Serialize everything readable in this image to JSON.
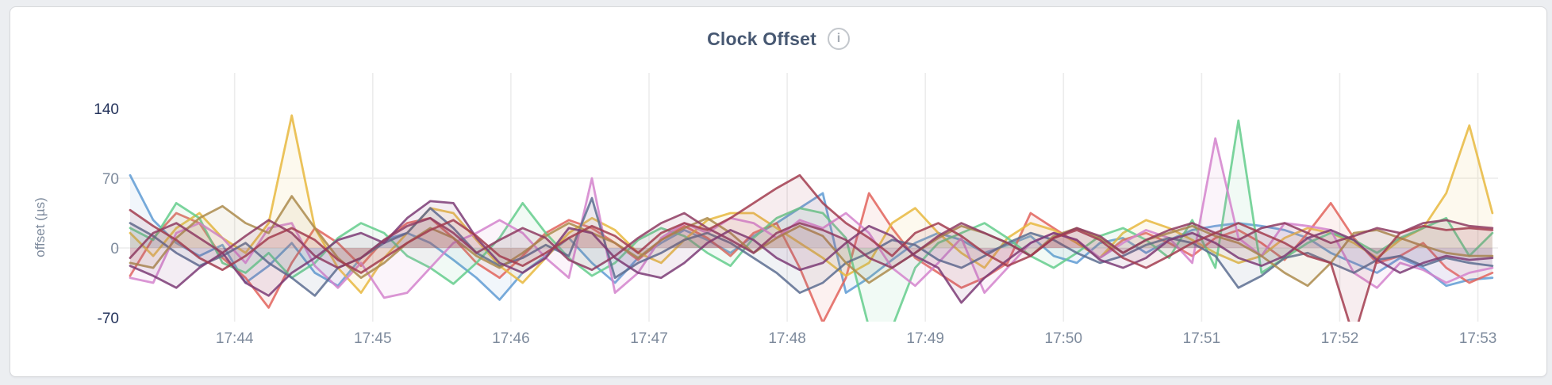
{
  "page": {
    "background": "#eceef1"
  },
  "card": {
    "background": "#ffffff",
    "border_color": "#d8d9dc"
  },
  "header": {
    "title": "Clock Offset",
    "info_icon_glyph": "i"
  },
  "styles": {
    "title_color": "#475872",
    "tick_color": "#7d8a9c",
    "tick_emphasis_color": "#24335b",
    "axis_title_color": "#7d8a9c",
    "grid_color": "#ececec",
    "info_icon_color": "#c3c7cc"
  },
  "chart_data": {
    "type": "line",
    "title": "Clock Offset",
    "xlabel": "",
    "ylabel": "offset (µs)",
    "x_ticks": [
      "17:44",
      "17:45",
      "17:46",
      "17:47",
      "17:48",
      "17:49",
      "17:50",
      "17:51",
      "17:52",
      "17:53"
    ],
    "y_ticks": [
      {
        "label": "140",
        "value": 140,
        "emphasis": true,
        "gridline": false
      },
      {
        "label": "70",
        "value": 70,
        "emphasis": false,
        "gridline": true
      },
      {
        "label": "0",
        "value": 0,
        "emphasis": false,
        "gridline": true
      },
      {
        "label": "-70",
        "value": -70,
        "emphasis": true,
        "gridline": false
      }
    ],
    "ylim": [
      -73,
      173
    ],
    "grid": true,
    "legend": "none",
    "points_interval_sec": 10,
    "series": [
      {
        "id": "series-1",
        "color": "#5f9bd3",
        "values": [
          73,
          28,
          5,
          -8,
          3,
          -35,
          -18,
          5,
          -25,
          -38,
          -10,
          8,
          15,
          5,
          -12,
          -30,
          -52,
          -25,
          -8,
          10,
          -15,
          -35,
          -10,
          5,
          18,
          8,
          -5,
          12,
          25,
          40,
          55,
          -45,
          -30,
          -12,
          5,
          15,
          8,
          -5,
          3,
          12,
          -8,
          -15,
          5,
          10,
          -5,
          8,
          18,
          22,
          25,
          22,
          18,
          10,
          -5,
          -15,
          -25,
          -10,
          -20,
          -38,
          -32,
          -30
        ]
      },
      {
        "id": "series-2",
        "color": "#e2635c",
        "values": [
          -28,
          10,
          35,
          25,
          -10,
          -30,
          -60,
          -15,
          20,
          5,
          -18,
          8,
          25,
          30,
          10,
          -15,
          -30,
          -8,
          15,
          28,
          20,
          5,
          -12,
          8,
          22,
          10,
          -8,
          15,
          25,
          -20,
          -75,
          -30,
          55,
          20,
          -10,
          -25,
          -40,
          -30,
          -15,
          35,
          20,
          5,
          -10,
          8,
          15,
          5,
          -8,
          10,
          18,
          5,
          -12,
          15,
          45,
          10,
          -15,
          -8,
          5,
          -20,
          -35,
          -25
        ]
      },
      {
        "id": "series-3",
        "color": "#e7b93e",
        "values": [
          15,
          -8,
          20,
          35,
          10,
          -5,
          25,
          133,
          20,
          -20,
          -45,
          -10,
          15,
          40,
          35,
          8,
          -18,
          -35,
          -10,
          15,
          30,
          18,
          -5,
          -15,
          8,
          28,
          35,
          35,
          20,
          5,
          -10,
          -28,
          -15,
          25,
          40,
          15,
          -5,
          -20,
          10,
          25,
          18,
          5,
          -10,
          15,
          28,
          20,
          8,
          -5,
          -15,
          -8,
          10,
          20,
          15,
          5,
          -10,
          8,
          20,
          55,
          123,
          35
        ]
      },
      {
        "id": "series-4",
        "color": "#64cd8c",
        "values": [
          20,
          8,
          45,
          30,
          -15,
          -25,
          -5,
          -30,
          -15,
          10,
          25,
          15,
          -8,
          -20,
          -36,
          -15,
          10,
          45,
          15,
          -10,
          -28,
          -15,
          8,
          20,
          12,
          -5,
          -18,
          10,
          30,
          40,
          35,
          10,
          -80,
          -80,
          -20,
          5,
          15,
          25,
          10,
          -8,
          -20,
          -5,
          12,
          20,
          8,
          -10,
          28,
          -20,
          128,
          -25,
          -10,
          5,
          15,
          8,
          -5,
          10,
          20,
          30,
          -8,
          15
        ]
      },
      {
        "id": "series-5",
        "color": "#d383cd",
        "values": [
          -30,
          -35,
          15,
          25,
          10,
          -15,
          20,
          25,
          -18,
          -40,
          -15,
          -50,
          -45,
          -20,
          5,
          15,
          28,
          15,
          -10,
          -30,
          70,
          -45,
          -25,
          10,
          25,
          15,
          30,
          25,
          10,
          28,
          20,
          35,
          15,
          -20,
          -38,
          -15,
          10,
          -45,
          -20,
          5,
          15,
          8,
          -10,
          5,
          18,
          10,
          -15,
          110,
          10,
          -8,
          25,
          22,
          18,
          -25,
          -40,
          -15,
          -22,
          -35,
          -25,
          -20
        ]
      },
      {
        "id": "series-6",
        "color": "#5c6d90",
        "values": [
          25,
          12,
          -5,
          -18,
          -8,
          5,
          -15,
          -30,
          -48,
          -20,
          -10,
          5,
          15,
          40,
          20,
          -5,
          -18,
          -10,
          3,
          -8,
          50,
          -30,
          -15,
          -5,
          8,
          15,
          5,
          -10,
          -25,
          -45,
          -35,
          -15,
          -5,
          8,
          3,
          -12,
          -20,
          -8,
          5,
          15,
          8,
          -5,
          -15,
          -8,
          3,
          10,
          5,
          -8,
          -40,
          -28,
          -10,
          -5,
          -15,
          -25,
          -12,
          -8,
          -18,
          -10,
          -15,
          -18
        ]
      },
      {
        "id": "series-7",
        "color": "#ab8b4c",
        "values": [
          -15,
          -20,
          10,
          30,
          42,
          25,
          15,
          52,
          20,
          -10,
          -30,
          -15,
          5,
          20,
          10,
          -8,
          -20,
          -5,
          12,
          25,
          15,
          5,
          -10,
          8,
          20,
          30,
          15,
          -5,
          10,
          22,
          12,
          -15,
          -35,
          -20,
          -5,
          10,
          22,
          15,
          5,
          -8,
          12,
          20,
          10,
          -5,
          8,
          15,
          22,
          12,
          5,
          -8,
          -25,
          -38,
          -15,
          15,
          18,
          10,
          2,
          -5,
          -8,
          -8
        ]
      },
      {
        "id": "series-8",
        "color": "#7b3b76",
        "values": [
          -18,
          -28,
          -40,
          -20,
          -5,
          -35,
          -48,
          -25,
          -10,
          8,
          15,
          5,
          30,
          47,
          45,
          10,
          -15,
          -25,
          -10,
          20,
          15,
          -10,
          -25,
          -30,
          -15,
          5,
          18,
          8,
          -10,
          -22,
          -15,
          5,
          22,
          12,
          -8,
          -20,
          -55,
          -30,
          -12,
          5,
          15,
          8,
          -12,
          -20,
          -10,
          8,
          15,
          5,
          -10,
          -18,
          -8,
          10,
          18,
          8,
          -12,
          -25,
          -15,
          -8,
          -12,
          -10
        ]
      },
      {
        "id": "series-9",
        "color": "#8e3b62",
        "values": [
          -10,
          15,
          25,
          10,
          -5,
          12,
          28,
          15,
          -8,
          -20,
          -10,
          8,
          22,
          30,
          15,
          -5,
          8,
          20,
          10,
          -12,
          -22,
          -8,
          10,
          25,
          35,
          20,
          8,
          -5,
          15,
          25,
          18,
          8,
          -10,
          -20,
          -5,
          12,
          25,
          15,
          5,
          -8,
          10,
          20,
          12,
          -5,
          8,
          18,
          25,
          15,
          8,
          20,
          25,
          15,
          5,
          12,
          20,
          15,
          25,
          28,
          22,
          20
        ]
      },
      {
        "id": "series-10",
        "color": "#a23c4f",
        "values": [
          38,
          22,
          8,
          -10,
          -22,
          -8,
          10,
          20,
          8,
          -12,
          -25,
          -10,
          5,
          18,
          28,
          12,
          -8,
          -18,
          -5,
          10,
          22,
          12,
          -5,
          15,
          25,
          18,
          30,
          45,
          60,
          73,
          45,
          25,
          10,
          -8,
          15,
          25,
          12,
          -5,
          -18,
          -8,
          10,
          18,
          8,
          -10,
          -20,
          -8,
          5,
          15,
          25,
          15,
          5,
          -8,
          -15,
          -90,
          -12,
          15,
          22,
          18,
          20,
          18
        ]
      }
    ]
  }
}
